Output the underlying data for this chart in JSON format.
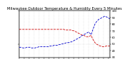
{
  "title": "Milwaukee Outdoor Temperature & Humidity Every 5 Minutes",
  "plot_bg": "#ffffff",
  "fig_bg": "#ffffff",
  "grid_color": "#c8c8c8",
  "red_line_color": "#cc0000",
  "blue_line_color": "#0000cc",
  "temp_values": [
    72,
    72,
    72,
    72,
    72,
    72,
    72,
    72,
    72,
    72,
    72,
    72,
    72,
    72,
    72,
    72,
    72,
    72,
    72,
    72,
    72,
    72,
    72,
    72,
    72,
    72,
    72,
    72,
    72,
    72,
    72,
    72,
    72,
    72,
    72,
    72,
    72,
    71,
    71,
    71,
    71,
    71,
    71,
    70,
    70,
    69,
    68,
    67,
    66,
    65,
    64,
    63,
    63,
    62,
    61,
    61,
    61,
    62,
    63,
    58,
    55,
    52,
    50,
    49,
    48,
    47,
    47,
    46,
    46,
    46,
    47,
    47,
    47,
    47
  ],
  "humidity_values": [
    45,
    45,
    45,
    44,
    44,
    44,
    45,
    45,
    45,
    45,
    44,
    44,
    44,
    44,
    45,
    45,
    46,
    46,
    46,
    46,
    46,
    46,
    46,
    46,
    46,
    47,
    47,
    47,
    48,
    48,
    48,
    48,
    49,
    49,
    50,
    50,
    51,
    51,
    52,
    52,
    52,
    53,
    53,
    54,
    55,
    56,
    57,
    58,
    59,
    60,
    62,
    63,
    64,
    65,
    66,
    67,
    68,
    66,
    64,
    70,
    75,
    80,
    83,
    85,
    87,
    88,
    89,
    90,
    91,
    92,
    91,
    90,
    89,
    88
  ],
  "ymin": 30,
  "ymax": 100,
  "yticks": [
    30,
    40,
    50,
    60,
    70,
    80,
    90,
    100
  ],
  "n_points": 74,
  "title_fontsize": 3.8,
  "tick_fontsize": 2.8,
  "linewidth": 0.6,
  "linestyle": "--",
  "title_bg": "#333333",
  "title_color": "#ffffff"
}
